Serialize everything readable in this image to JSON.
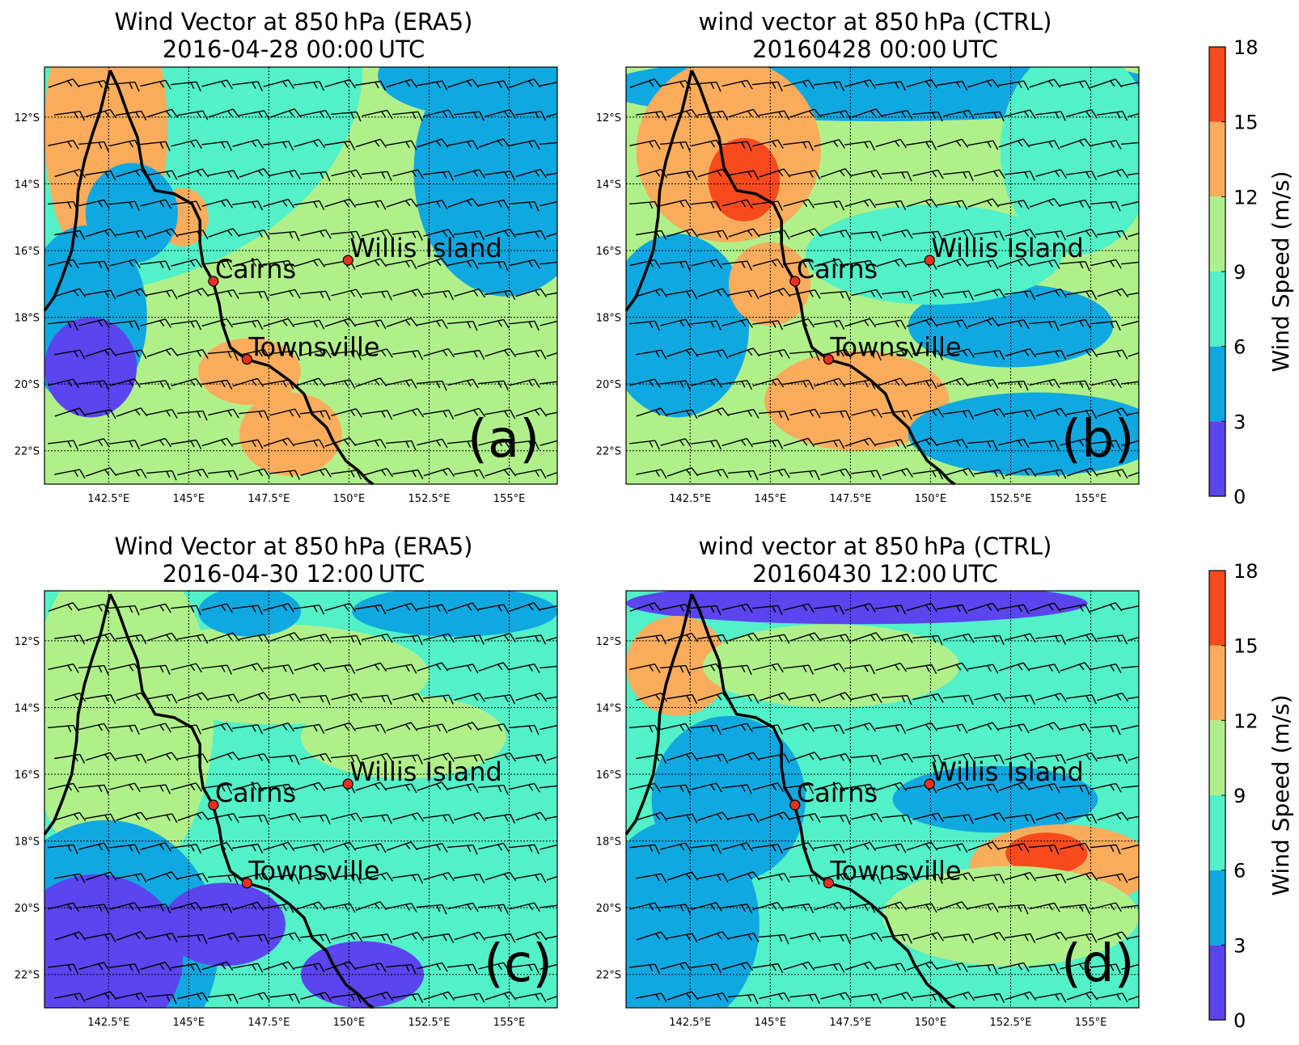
{
  "figure": {
    "panels": [
      {
        "id": "a",
        "title_line1": "Wind Vector at 850 hPa (ERA5)",
        "title_line2": "2016-04-28 00:00 UTC",
        "panel_label": "(a)",
        "source": "ERA5"
      },
      {
        "id": "b",
        "title_line1": "wind vector at 850 hPa  (CTRL)",
        "title_line2": "20160428 00:00 UTC",
        "panel_label": "(b)",
        "source": "CTRL"
      },
      {
        "id": "c",
        "title_line1": "Wind Vector at 850 hPa (ERA5)",
        "title_line2": "2016-04-30 12:00 UTC",
        "panel_label": "(c)",
        "source": "ERA5"
      },
      {
        "id": "d",
        "title_line1": "wind vector at 850 hPa  (CTRL)",
        "title_line2": "20160430 12:00 UTC",
        "panel_label": "(d)",
        "source": "CTRL"
      }
    ],
    "map_extent": {
      "lon_min": 140.5,
      "lon_max": 156.5,
      "lat_min": -23.0,
      "lat_max": -10.5
    },
    "lon_ticks": [
      {
        "value": 142.5,
        "label": "142.5°E"
      },
      {
        "value": 145.0,
        "label": "145°E"
      },
      {
        "value": 147.5,
        "label": "147.5°E"
      },
      {
        "value": 150.0,
        "label": "150°E"
      },
      {
        "value": 152.5,
        "label": "152.5°E"
      },
      {
        "value": 155.0,
        "label": "155°E"
      }
    ],
    "lat_ticks": [
      {
        "value": -12,
        "label": "12°S"
      },
      {
        "value": -14,
        "label": "14°S"
      },
      {
        "value": -16,
        "label": "16°S"
      },
      {
        "value": -18,
        "label": "18°S"
      },
      {
        "value": -20,
        "label": "20°S"
      },
      {
        "value": -22,
        "label": "22°S"
      }
    ],
    "stations": [
      {
        "name": "Cairns",
        "lon": 145.77,
        "lat": -16.92
      },
      {
        "name": "Townsville",
        "lon": 146.82,
        "lat": -19.26
      },
      {
        "name": "Willis Island",
        "lon": 149.97,
        "lat": -16.29
      }
    ],
    "colorbar": {
      "label": "Wind Speed (m/s)",
      "ticks": [
        "0",
        "3",
        "6",
        "9",
        "12",
        "15",
        "18"
      ],
      "colors": [
        "#5b45ee",
        "#10a8e0",
        "#52f1c8",
        "#b0f08a",
        "#f9ad5c",
        "#f94a1e"
      ]
    },
    "colors": {
      "coastline": "#000000",
      "barb": "#000000",
      "station_marker": "#e83020",
      "gridline": "#000000"
    }
  }
}
